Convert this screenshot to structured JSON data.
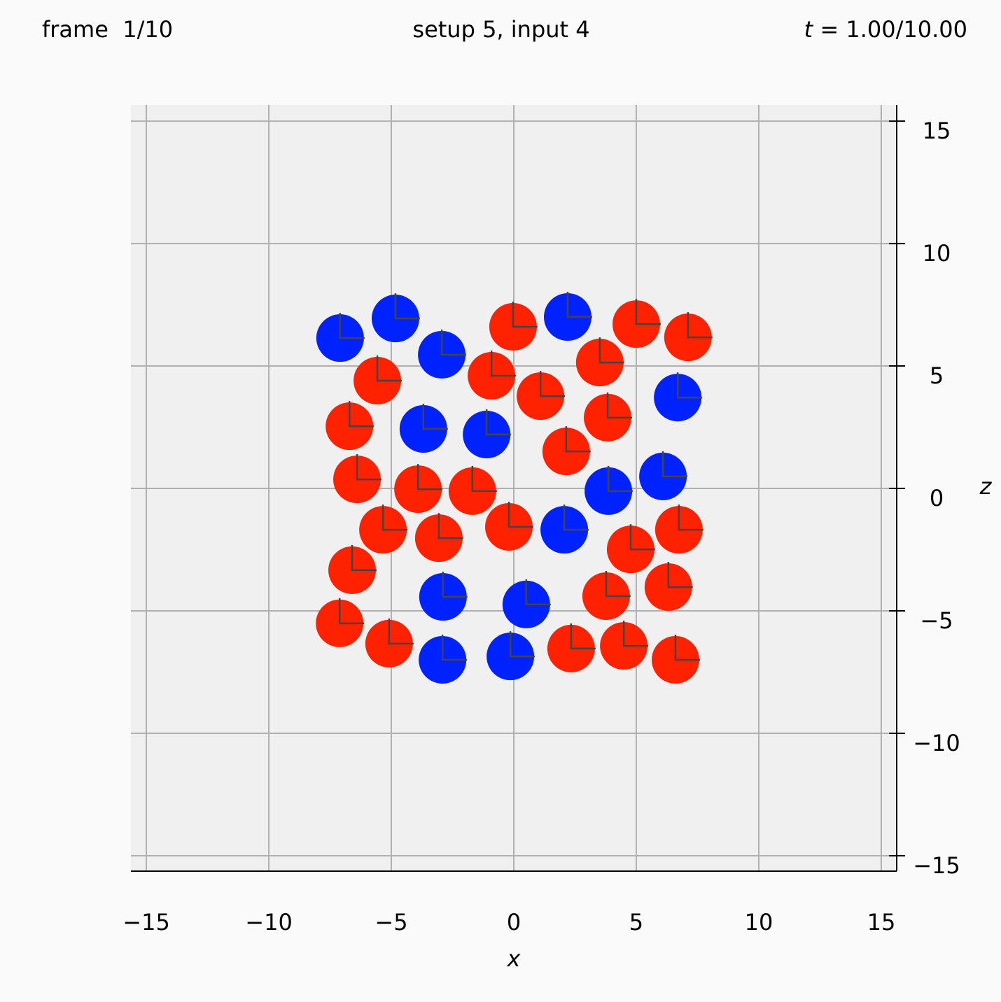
{
  "header": {
    "frame": "frame  1/10",
    "setup": "setup 5, input 4",
    "time": {
      "symbol": "t",
      "text": " = 1.00/10.00"
    }
  },
  "chart_data": {
    "type": "scatter",
    "xlabel": "x",
    "ylabel": "z",
    "grid": true,
    "xlim": [
      -15.63,
      15.63
    ],
    "ylim": [
      -15.63,
      15.66
    ],
    "xticks": [
      {
        "value": -15,
        "label": "−15"
      },
      {
        "value": -10,
        "label": "−10"
      },
      {
        "value": -5,
        "label": "−5"
      },
      0,
      5,
      10,
      15
    ],
    "yticks": [
      {
        "value": -15,
        "label": "−15"
      },
      {
        "value": -10,
        "label": "−10"
      },
      {
        "value": -5,
        "label": "−5"
      },
      0,
      5,
      10,
      15
    ],
    "series": [
      {
        "color": "#0022ff",
        "x": [
          -7.09,
          -4.83,
          -2.94,
          2.2,
          -3.69,
          -1.11,
          6.69,
          6.09,
          3.86,
          2.06,
          -2.89,
          0.51,
          -2.91,
          -0.14
        ],
        "values": [
          6.14,
          6.94,
          5.46,
          7.0,
          2.43,
          2.2,
          3.71,
          0.49,
          -0.11,
          -1.69,
          -4.43,
          -4.74,
          -7.0,
          -6.86
        ]
      },
      {
        "color": "#ff2200",
        "x": [
          -0.03,
          5.0,
          7.11,
          -5.57,
          -0.91,
          3.51,
          1.09,
          3.83,
          -6.71,
          2.14,
          -6.4,
          -3.91,
          -1.69,
          -5.34,
          -3.06,
          -0.2,
          6.74,
          4.77,
          -6.6,
          6.31,
          3.77,
          -7.11,
          -5.09,
          2.34,
          4.49,
          6.6
        ],
        "values": [
          6.6,
          6.71,
          6.17,
          4.4,
          4.6,
          5.14,
          3.77,
          2.89,
          2.54,
          1.51,
          0.37,
          -0.03,
          -0.11,
          -1.69,
          -2.03,
          -1.57,
          -1.69,
          -2.49,
          -3.34,
          -4.03,
          -4.4,
          -5.51,
          -6.34,
          -6.54,
          -6.43,
          -7.0
        ]
      }
    ]
  }
}
